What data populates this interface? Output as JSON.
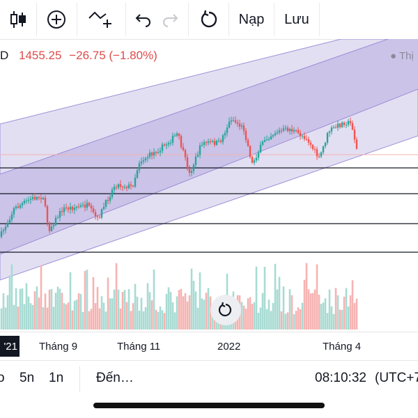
{
  "toolbar": {
    "items": [
      {
        "name": "candles-icon"
      },
      {
        "name": "add-indicator-icon"
      },
      {
        "name": "compare-icon"
      },
      {
        "name": "undo-icon"
      },
      {
        "name": "redo-icon"
      },
      {
        "name": "reload-icon"
      }
    ],
    "load_label": "Nạp",
    "save_label": "Lưu"
  },
  "legend": {
    "symbol_suffix": "D",
    "price": "1455.25",
    "change": "−26.75 (−1.80%)"
  },
  "right_label": "● Thị",
  "colors": {
    "up": "#26a69a",
    "down": "#ef5350",
    "channel": "#9c8fd8",
    "text": "#131722"
  },
  "x_axis": {
    "current_label": "'21",
    "labels": [
      "Tháng 9",
      "Tháng 11",
      "2022",
      "Tháng 4"
    ]
  },
  "bottom_bar": {
    "ranges": [
      "o",
      "5n",
      "1n"
    ],
    "goto_label": "Đến…",
    "time": "08:10:32",
    "timezone": "(UTC+7"
  }
}
